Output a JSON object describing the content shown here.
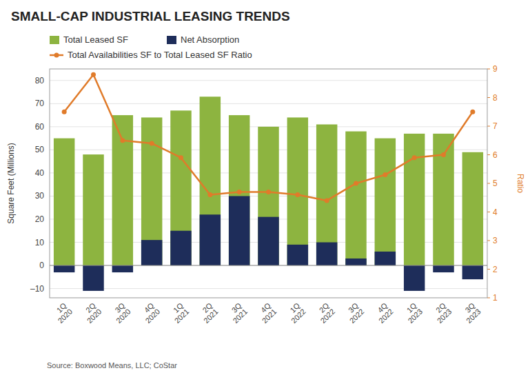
{
  "chart_data": {
    "type": "bar",
    "title": "SMALL-CAP INDUSTRIAL LEASING TRENDS",
    "annotations": [
      "Source: Boxwood Means, LLC; CoStar"
    ],
    "categories": [
      "1Q 2020",
      "2Q 2020",
      "3Q 2020",
      "4Q 2020",
      "1Q 2021",
      "2Q 2021",
      "3Q 2021",
      "4Q 2021",
      "1Q 2022",
      "2Q 2022",
      "3Q 2022",
      "4Q 2022",
      "1Q 2023",
      "2Q 2023",
      "3Q 2023"
    ],
    "series": [
      {
        "name": "Total Leased SF",
        "color": "#8db440",
        "values": [
          55,
          48,
          65,
          64,
          67,
          73,
          65,
          60,
          64,
          61,
          58,
          55,
          57,
          57,
          49
        ]
      },
      {
        "name": "Net Absorption",
        "color": "#1e2d5a",
        "values": [
          -3,
          -11,
          -3,
          11,
          15,
          22,
          30,
          21,
          9,
          10,
          3,
          6,
          -11,
          -3,
          -6
        ]
      },
      {
        "name": "Total Availabilities SF to Total Leased SF Ratio",
        "type": "line",
        "axis": "y2",
        "marker": "circle",
        "color": "#e07b2a",
        "values": [
          7.5,
          8.8,
          6.5,
          6.4,
          5.9,
          4.6,
          4.7,
          4.7,
          4.6,
          4.4,
          5.0,
          5.3,
          5.9,
          6.0,
          7.5
        ]
      }
    ],
    "ylabel": "Square Feet (Millions)",
    "y2label": "Ratio",
    "ylim": [
      -14,
      85
    ],
    "yticks": [
      {
        "value": -10,
        "label": "–10"
      },
      0,
      10,
      20,
      30,
      40,
      50,
      60,
      70,
      80
    ],
    "y2lim": [
      1,
      9
    ],
    "y2ticks": [
      1,
      2,
      3,
      4,
      5,
      6,
      7,
      8,
      9
    ],
    "grid": true,
    "legend": "top"
  }
}
